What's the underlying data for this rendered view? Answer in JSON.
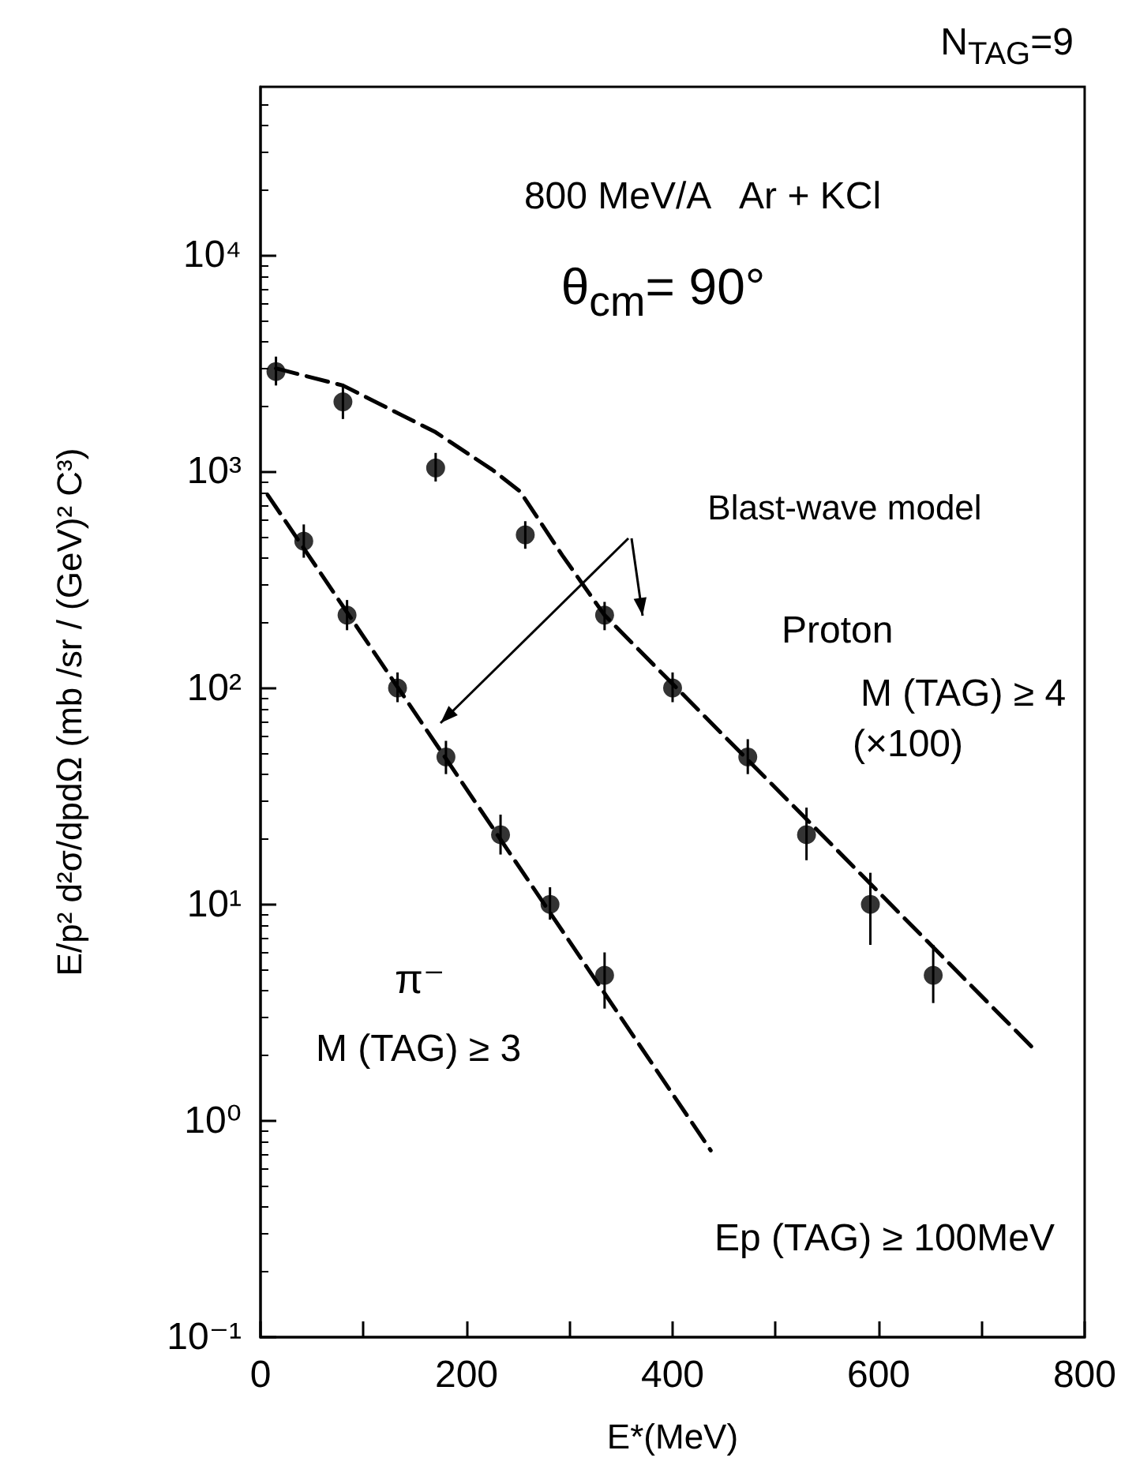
{
  "chart_data": {
    "type": "scatter",
    "xlabel": "E*(MeV)",
    "ylabel": "E/p² d²σ/dpdΩ (mb /sr / (GeV)² C³)",
    "log": "y",
    "xlim": [
      0,
      800
    ],
    "xticks": [
      0,
      {
        "value": 100,
        "label": null
      },
      200,
      {
        "value": 300,
        "label": null
      },
      400,
      {
        "value": 500,
        "label": null
      },
      600,
      {
        "value": 700,
        "label": null
      },
      800
    ],
    "ylim": [
      0.1,
      60000
    ],
    "yticks": [
      {
        "value": 0.1,
        "label": "10⁻¹"
      },
      {
        "value": 1,
        "label": "10⁰"
      },
      {
        "value": 10,
        "label": "10¹"
      },
      {
        "value": 100,
        "label": "10²"
      },
      {
        "value": 1000,
        "label": "10³"
      },
      {
        "value": 10000,
        "label": "10⁴"
      }
    ],
    "grid": false,
    "marker": "circle",
    "series": [
      {
        "color": "#000000",
        "x": [
          15,
          80,
          170,
          257,
          334,
          400,
          473,
          530,
          592,
          653
        ],
        "values": [
          2900,
          2100,
          1040,
          510,
          217,
          100,
          48,
          21,
          10,
          4.7
        ],
        "errors": [
          [
            2500,
            3400
          ],
          [
            1750,
            2550
          ],
          [
            900,
            1220
          ],
          [
            440,
            590
          ],
          [
            185,
            250
          ],
          [
            86,
            118
          ],
          [
            40,
            58
          ],
          [
            16,
            28
          ],
          [
            6.5,
            14
          ],
          [
            3.5,
            6.5
          ]
        ]
      },
      {
        "color": "#000000",
        "x": [
          42,
          84,
          133,
          180,
          233,
          281,
          334
        ],
        "values": [
          477,
          217,
          100,
          48,
          21,
          10,
          4.7
        ],
        "errors": [
          [
            400,
            570
          ],
          [
            185,
            255
          ],
          [
            86,
            118
          ],
          [
            40,
            57
          ],
          [
            17,
            26
          ],
          [
            8.5,
            12
          ],
          [
            3.3,
            6
          ]
        ]
      },
      {
        "type": "line",
        "color": "#000000",
        "line_style": "dashed",
        "marker": "none",
        "x": [
          15,
          80,
          170,
          225,
          252,
          293,
          334,
          754
        ],
        "values": [
          3000,
          2500,
          1520,
          1020,
          810,
          410,
          217,
          2.07
        ]
      },
      {
        "type": "line",
        "color": "#000000",
        "line_style": "dashed",
        "marker": "none",
        "x": [
          7,
          437
        ],
        "values": [
          780,
          0.73
        ]
      }
    ],
    "annotations": [
      "N$_{TAG}$=9",
      "800 MeV/A   Ar + KCl",
      "θ$_{cm}$= 90°",
      "Blast-wave model",
      "Proton",
      "M (TAG) ≥ 4",
      "(×100)",
      "π⁻",
      "M (TAG) ≥ 3",
      "Ep (TAG) ≥ 100MeV"
    ]
  }
}
